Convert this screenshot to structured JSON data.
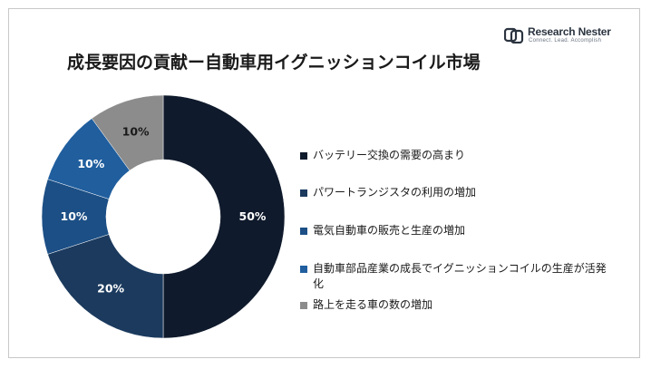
{
  "title": "成長要因の貢献ー自動車用イグニッションコイル市場",
  "logo": {
    "name": "Research Nester",
    "tagline": "Connect. Lead. Accomplish"
  },
  "colors": {
    "series": [
      "#0f1a2c",
      "#1b3a5e",
      "#1c4f85",
      "#205e9e",
      "#8c8c8c"
    ]
  },
  "chart_data": {
    "type": "pie",
    "variant": "donut",
    "title": "成長要因の貢献ー自動車用イグニッションコイル市場",
    "legend_position": "right",
    "categories": [
      "バッテリー交換の需要の高まり",
      "パワートランジスタの利用の増加",
      "電気自動車の販売と生産の増加",
      "自動車部品産業の成長でイグニッションコイルの生産が活発化",
      "路上を走る車の数の増加"
    ],
    "values": [
      50,
      20,
      10,
      10,
      10
    ],
    "labels": [
      "50%",
      "20%",
      "10%",
      "10%",
      "10%"
    ]
  }
}
